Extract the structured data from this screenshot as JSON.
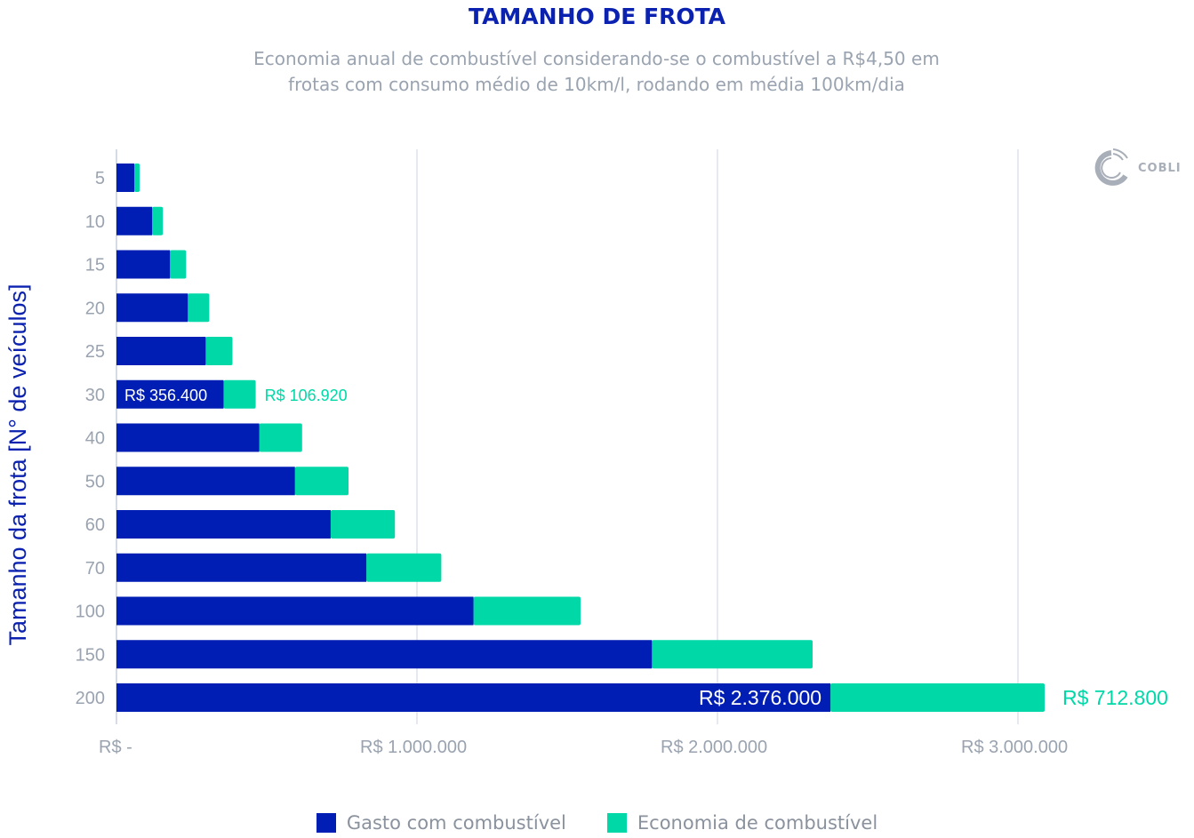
{
  "title": "TAMANHO DE FROTA",
  "subtitle_line1": "Economia anual de combustível considerando-se o combustível a R$4,50 em",
  "subtitle_line2": "frotas com consumo médio de 10km/l, rodando em média 100km/dia",
  "logo_text": "COBLI",
  "colors": {
    "spend": "#001eb4",
    "savings": "#00d8a8",
    "grid": "#dde2ea",
    "tick": "#9aa3b0"
  },
  "chart_data": {
    "type": "bar",
    "orientation": "horizontal",
    "stacked": true,
    "ylabel": "Tamanho da frota [N° de veículos]",
    "xlabel": "",
    "categories": [
      "5",
      "10",
      "15",
      "20",
      "25",
      "30",
      "40",
      "50",
      "60",
      "70",
      "100",
      "150",
      "200"
    ],
    "series": [
      {
        "name": "Gasto com combustível",
        "values": [
          59400,
          118800,
          178200,
          237600,
          297000,
          356400,
          475200,
          594000,
          712800,
          831600,
          1188000,
          1782000,
          2376000
        ]
      },
      {
        "name": "Economia de combustível",
        "values": [
          17820,
          35640,
          53460,
          71280,
          89100,
          106920,
          142560,
          178200,
          213840,
          249480,
          356400,
          534600,
          712800
        ]
      }
    ],
    "xlim": [
      0,
      3100000
    ],
    "xticks": [
      0,
      1000000,
      2000000,
      3000000
    ],
    "xtick_labels": [
      "R$  -",
      "R$  1.000.000",
      "R$  2.000.000",
      "R$  3.000.000"
    ],
    "grid": "vertical",
    "legend": "bottom",
    "data_labels": [
      {
        "category": "30",
        "series": 0,
        "text": "R$  356.400"
      },
      {
        "category": "30",
        "series": 1,
        "text": "R$  106.920"
      },
      {
        "category": "200",
        "series": 0,
        "text": "R$  2.376.000"
      },
      {
        "category": "200",
        "series": 1,
        "text": "R$  712.800"
      }
    ]
  }
}
